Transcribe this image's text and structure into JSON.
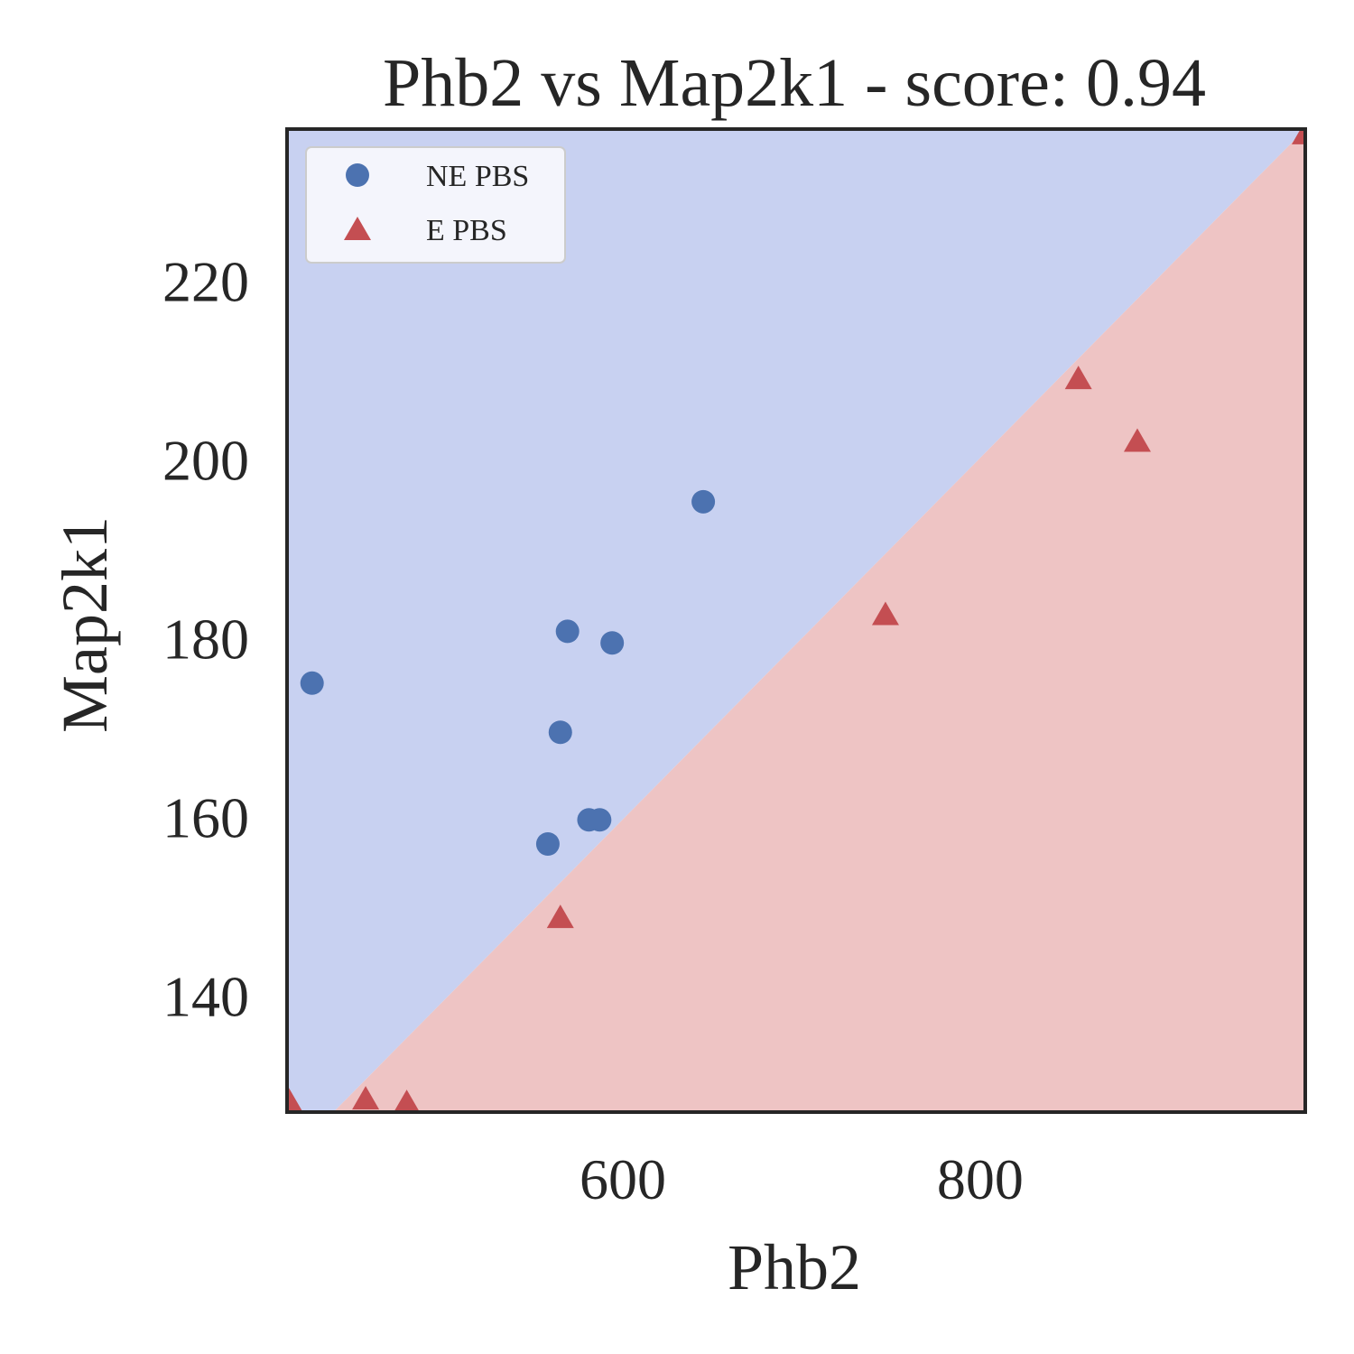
{
  "chart_data": {
    "type": "scatter",
    "title": "Phb2 vs Map2k1 - score: 0.94",
    "xlabel": "Phb2",
    "ylabel": "Map2k1",
    "xlim": [
      412,
      982
    ],
    "ylim": [
      127,
      237
    ],
    "xticks": [
      600,
      800
    ],
    "yticks": [
      140,
      160,
      180,
      200,
      220
    ],
    "grid": false,
    "legend_position": "top-left",
    "decision_regions": {
      "upper_left_class": "NE PBS",
      "lower_right_class": "E PBS",
      "upper_left_color": "#c8d1f1",
      "lower_right_color": "#eec4c4",
      "boundary": [
        [
          438,
          127
        ],
        [
          982,
          237
        ]
      ]
    },
    "series": [
      {
        "name": "NE PBS",
        "marker": "circle",
        "color": "#4c72b0",
        "points": [
          [
            426,
            175
          ],
          [
            569,
            180.8
          ],
          [
            594,
            179.5
          ],
          [
            645,
            195.3
          ],
          [
            565,
            169.5
          ],
          [
            558,
            157
          ],
          [
            581,
            159.7
          ],
          [
            587,
            159.7
          ]
        ]
      },
      {
        "name": "E PBS",
        "marker": "triangle",
        "color": "#c44e52",
        "points": [
          [
            413,
            128
          ],
          [
            456,
            128.2
          ],
          [
            479,
            127.8
          ],
          [
            565,
            148.5
          ],
          [
            747,
            182.4
          ],
          [
            855,
            208.8
          ],
          [
            888,
            201.8
          ],
          [
            982,
            236.2
          ]
        ]
      }
    ]
  }
}
